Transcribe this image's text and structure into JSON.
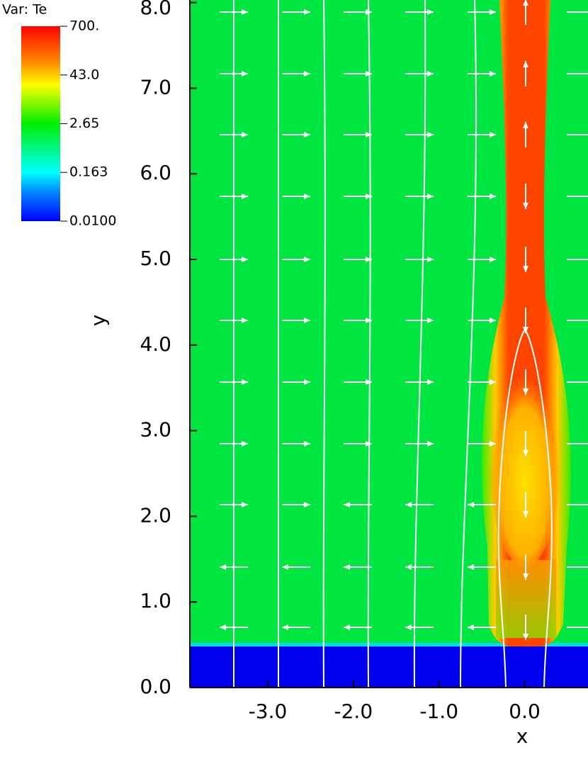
{
  "chart_data": {
    "type": "pseudocolor",
    "legend_title": "Var: Te",
    "xlabel": "x",
    "ylabel": "y",
    "xlim": [
      -3.91,
      0.74
    ],
    "ylim": [
      0,
      8.03
    ],
    "xticks": [
      {
        "value": -3,
        "label": "-3.0"
      },
      {
        "value": -2,
        "label": "-2.0"
      },
      {
        "value": -1,
        "label": "-1.0"
      },
      {
        "value": 0,
        "label": "0.0"
      }
    ],
    "yticks": [
      {
        "value": 0,
        "label": "0.0"
      },
      {
        "value": 1,
        "label": "1.0"
      },
      {
        "value": 2,
        "label": "2.0"
      },
      {
        "value": 3,
        "label": "3.0"
      },
      {
        "value": 4,
        "label": "4.0"
      },
      {
        "value": 5,
        "label": "5.0"
      },
      {
        "value": 6,
        "label": "6.0"
      },
      {
        "value": 7,
        "label": "7.0"
      },
      {
        "value": 8,
        "label": "8.0"
      }
    ],
    "colorbar_lim": [
      0.01,
      700
    ],
    "colorbar_log": true,
    "colorbar_ticks": [
      {
        "value": 700,
        "label": "700."
      },
      {
        "value": 43,
        "label": "43.0"
      },
      2.65,
      0.163,
      {
        "value": 0.01,
        "label": "0.0100"
      }
    ]
  }
}
